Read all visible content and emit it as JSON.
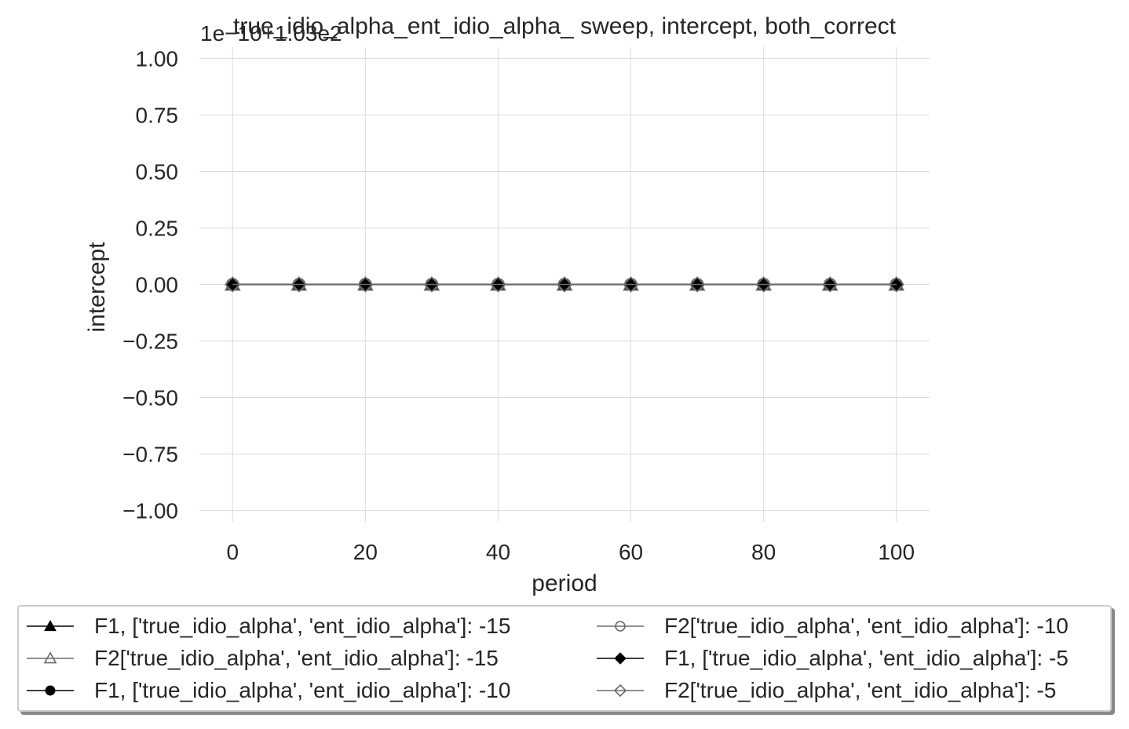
{
  "chart_data": {
    "type": "line",
    "title": "true_idio_alpha_ent_idio_alpha_ sweep, intercept, both_correct",
    "offset_text": "1e−10+1.03e2",
    "xlabel": "period",
    "ylabel": "intercept",
    "xlim": [
      -5,
      105
    ],
    "ylim": [
      -1.05,
      1.05
    ],
    "x_ticks": [
      0,
      20,
      40,
      60,
      80,
      100
    ],
    "x_tick_labels": [
      "0",
      "20",
      "40",
      "60",
      "80",
      "100"
    ],
    "y_ticks": [
      1.0,
      0.75,
      0.5,
      0.25,
      0.0,
      -0.25,
      -0.5,
      -0.75,
      -1.0
    ],
    "y_tick_labels": [
      "1.00",
      "0.75",
      "0.50",
      "0.25",
      "0.00",
      "−0.25",
      "−0.50",
      "−0.75",
      "−1.00"
    ],
    "grid": true,
    "legend_position": "bottom",
    "x": [
      0,
      10,
      20,
      30,
      40,
      50,
      60,
      70,
      80,
      90,
      100
    ],
    "series": [
      {
        "name": "F1, ['true_idio_alpha', 'ent_idio_alpha']: -15",
        "color": "#000000",
        "marker": "triangle-filled",
        "values": [
          0,
          0,
          0,
          0,
          0,
          0,
          0,
          0,
          0,
          0,
          0
        ]
      },
      {
        "name": "F2['true_idio_alpha', 'ent_idio_alpha']: -15",
        "color": "#6b6b6b",
        "marker": "triangle-open",
        "values": [
          0,
          0,
          0,
          0,
          0,
          0,
          0,
          0,
          0,
          0,
          0
        ]
      },
      {
        "name": "F1, ['true_idio_alpha', 'ent_idio_alpha']: -10",
        "color": "#000000",
        "marker": "circle-filled",
        "values": [
          0,
          0,
          0,
          0,
          0,
          0,
          0,
          0,
          0,
          0,
          0
        ]
      },
      {
        "name": "F2['true_idio_alpha', 'ent_idio_alpha']: -10",
        "color": "#6b6b6b",
        "marker": "circle-open",
        "values": [
          0,
          0,
          0,
          0,
          0,
          0,
          0,
          0,
          0,
          0,
          0
        ]
      },
      {
        "name": "F1, ['true_idio_alpha', 'ent_idio_alpha']: -5",
        "color": "#000000",
        "marker": "diamond-filled",
        "values": [
          0,
          0,
          0,
          0,
          0,
          0,
          0,
          0,
          0,
          0,
          0
        ]
      },
      {
        "name": "F2['true_idio_alpha', 'ent_idio_alpha']: -5",
        "color": "#6b6b6b",
        "marker": "diamond-open",
        "values": [
          0,
          0,
          0,
          0,
          0,
          0,
          0,
          0,
          0,
          0,
          0
        ]
      }
    ]
  }
}
